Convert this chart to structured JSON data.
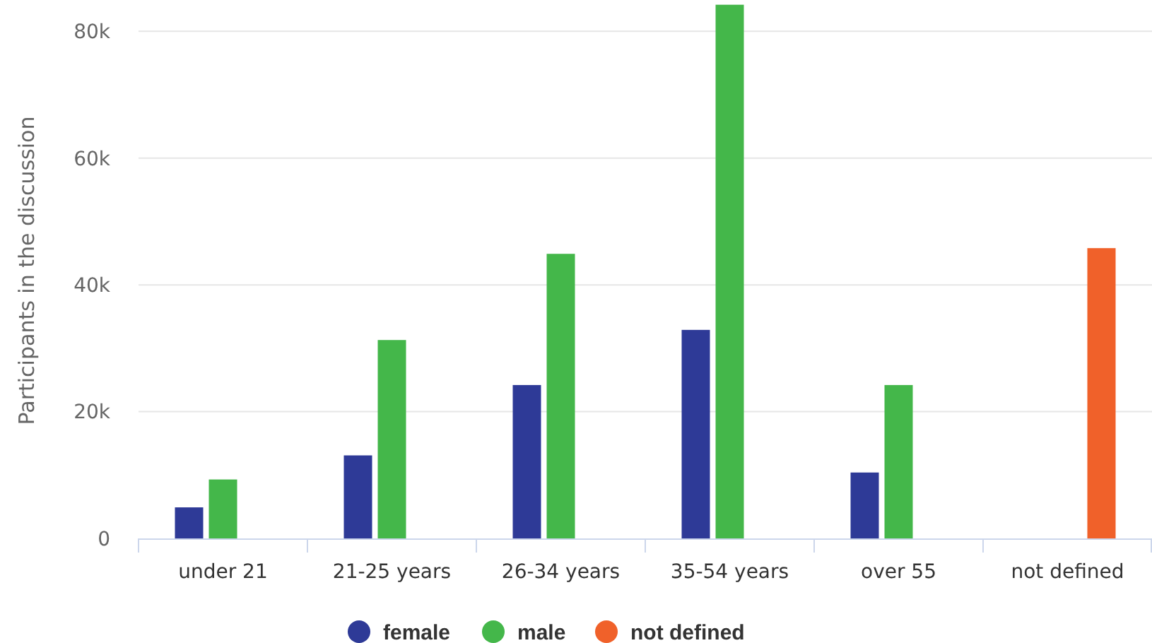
{
  "chart_data": {
    "type": "bar",
    "ylabel": "Participants in the discussion",
    "categories": [
      "under 21",
      "21-25 years",
      "26-34 years",
      "35-54 years",
      "over 55",
      "not defined"
    ],
    "series": [
      {
        "name": "female",
        "color": "#2e3a97",
        "values": [
          4900,
          13100,
          24200,
          32900,
          10400,
          null
        ]
      },
      {
        "name": "male",
        "color": "#44b74a",
        "values": [
          9300,
          31300,
          44900,
          84200,
          24200,
          null
        ]
      },
      {
        "name": "not defined",
        "color": "#f0612a",
        "values": [
          null,
          null,
          null,
          null,
          null,
          45800
        ]
      }
    ],
    "ylim": [
      0,
      84500
    ],
    "yticks": [
      0,
      {
        "value": 20000,
        "label": "20k"
      },
      {
        "value": 40000,
        "label": "40k"
      },
      {
        "value": 60000,
        "label": "60k"
      },
      {
        "value": 80000,
        "label": "80k"
      }
    ],
    "grid": "y",
    "legend": "bottom"
  }
}
